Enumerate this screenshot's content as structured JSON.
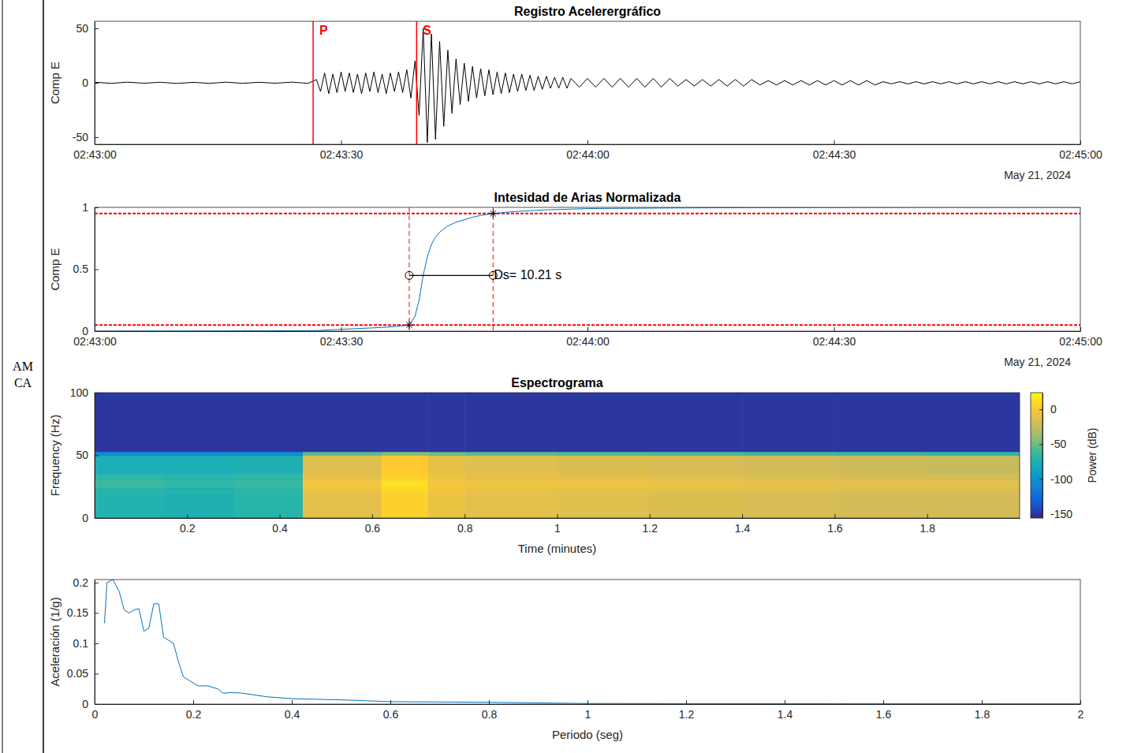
{
  "chart_data": [
    {
      "type": "line",
      "title": "Registro Acelerergráfico",
      "ylabel": "Comp E",
      "xlabel": "May 21, 2024",
      "color": "#000000",
      "xlim": [
        0,
        120
      ],
      "xticks": [
        {
          "value": 0,
          "label": "02:43:00"
        },
        {
          "value": 30,
          "label": "02:43:30"
        },
        {
          "value": 60,
          "label": "02:44:00"
        },
        {
          "value": 90,
          "label": "02:44:30"
        },
        {
          "value": 120,
          "label": "02:45:00"
        }
      ],
      "ylim": [
        -56.5,
        56.5
      ],
      "yticks": [
        -50,
        0,
        50
      ],
      "markers": [
        {
          "label": "P",
          "x": 26.6,
          "color": "#ff0000"
        },
        {
          "label": "S",
          "x": 39.2,
          "color": "#ff0000"
        }
      ],
      "x": [
        0,
        2,
        4,
        6,
        8,
        10,
        12,
        14,
        16,
        18,
        20,
        22,
        24,
        26,
        27,
        27.5,
        28,
        28.5,
        29,
        29.5,
        30,
        30.5,
        31,
        31.5,
        32,
        32.5,
        33,
        33.5,
        34,
        34.5,
        35,
        35.5,
        36,
        36.5,
        37,
        37.5,
        38,
        38.5,
        39,
        39.5,
        40,
        40.5,
        41,
        41.5,
        42,
        42.5,
        43,
        43.5,
        44,
        44.5,
        45,
        45.5,
        46,
        46.5,
        47,
        47.5,
        48,
        48.5,
        49,
        49.5,
        50,
        50.5,
        51,
        51.5,
        52,
        52.5,
        53,
        53.5,
        54,
        54.5,
        55,
        55.5,
        56,
        56.5,
        57,
        57.5,
        58,
        59,
        60,
        61,
        62,
        63,
        64,
        65,
        66,
        67,
        68,
        69,
        70,
        71,
        72,
        73,
        74,
        75,
        76,
        77,
        78,
        79,
        80,
        81,
        82,
        83,
        84,
        85,
        86,
        87,
        88,
        89,
        90,
        91,
        92,
        93,
        94,
        95,
        96,
        97,
        98,
        99,
        100,
        101,
        102,
        103,
        104,
        105,
        106,
        107,
        108,
        109,
        110,
        111,
        112,
        113,
        114,
        115,
        116,
        117,
        118,
        119,
        120
      ],
      "values": [
        0.5,
        -0.5,
        0.6,
        -0.4,
        0.5,
        -0.6,
        0.4,
        -0.5,
        0.6,
        -0.5,
        0.5,
        -0.4,
        0.6,
        -0.5,
        3,
        -8,
        9,
        -10,
        8,
        -9,
        10,
        -8,
        9,
        -9,
        8,
        -10,
        9,
        -8,
        10,
        -9,
        8,
        -10,
        9,
        -8,
        10,
        -9,
        12,
        -14,
        20,
        -30,
        50,
        -55,
        45,
        -52,
        38,
        -40,
        30,
        -28,
        22,
        -20,
        18,
        -17,
        15,
        -14,
        13,
        -12,
        12,
        -11,
        10,
        -10,
        9,
        -9,
        8,
        -8,
        8,
        -7,
        7,
        -7,
        6,
        -6,
        6,
        -5,
        5,
        -5,
        5,
        -5,
        4,
        -4,
        4,
        -4,
        4,
        -4,
        4,
        -4,
        4,
        -4,
        4,
        -4,
        4,
        -3,
        3,
        -3,
        3,
        -3,
        3,
        -3,
        3,
        -3,
        3,
        -2,
        2,
        -2,
        2,
        -2,
        2,
        -2,
        2,
        -2,
        2,
        -2,
        2,
        -2,
        2,
        -2,
        1,
        -1,
        1,
        -1,
        1,
        -1,
        1,
        -1,
        1,
        -1,
        1,
        -1,
        1,
        -1,
        1,
        -1,
        1,
        -1,
        1,
        -1,
        1,
        -1,
        1,
        -1,
        1
      ]
    },
    {
      "type": "line",
      "title": "Intesidad de Arias Normalizada",
      "ylabel": "Comp E",
      "xlabel": "May 21, 2024",
      "color": "#0072bd",
      "xlim": [
        0,
        120
      ],
      "xticks": [
        {
          "value": 0,
          "label": "02:43:00"
        },
        {
          "value": 30,
          "label": "02:43:30"
        },
        {
          "value": 60,
          "label": "02:44:00"
        },
        {
          "value": 90,
          "label": "02:44:30"
        },
        {
          "value": 120,
          "label": "02:45:00"
        }
      ],
      "ylim": [
        0,
        1
      ],
      "yticks": [
        0,
        0.5,
        1
      ],
      "thresholds": [
        0.05,
        0.95
      ],
      "interval": [
        38.3,
        48.51
      ],
      "interval_y": 0.45,
      "annotation": "Ds= 10.21 s",
      "x": [
        0,
        10,
        20,
        27,
        30,
        35,
        37,
        38.3,
        39,
        39.5,
        40,
        40.5,
        41,
        41.5,
        42,
        43,
        44,
        45,
        46,
        47,
        48.51,
        50,
        52,
        55,
        60,
        70,
        80,
        100,
        120
      ],
      "values": [
        0,
        0.001,
        0.002,
        0.005,
        0.015,
        0.03,
        0.04,
        0.05,
        0.12,
        0.25,
        0.45,
        0.6,
        0.7,
        0.76,
        0.8,
        0.85,
        0.88,
        0.9,
        0.92,
        0.935,
        0.95,
        0.96,
        0.97,
        0.98,
        0.99,
        0.995,
        0.998,
        1,
        1
      ]
    },
    {
      "type": "heatmap",
      "title": "Espectrograma",
      "xlabel": "Time (minutes)",
      "ylabel": "Frequency (Hz)",
      "xlim": [
        0,
        2
      ],
      "xticks": [
        0.2,
        0.4,
        0.6,
        0.8,
        1,
        1.2,
        1.4,
        1.6,
        1.8
      ],
      "ylim": [
        0,
        100
      ],
      "yticks": [
        0,
        50,
        100
      ],
      "x_edges": [
        0,
        0.15,
        0.3,
        0.45,
        0.62,
        0.72,
        0.8,
        1.0,
        1.2,
        1.4,
        1.6,
        1.8,
        2.0
      ],
      "y_edges": [
        0,
        20,
        25,
        30,
        35,
        50,
        53,
        100
      ],
      "cells": [
        [
          -72,
          -74,
          -70,
          -12,
          5,
          -8,
          -12,
          -14,
          -16,
          -18,
          -19,
          -20
        ],
        [
          -70,
          -72,
          -68,
          -8,
          8,
          -5,
          -9,
          -11,
          -13,
          -14,
          -15,
          -16
        ],
        [
          -62,
          -66,
          -64,
          -4,
          12,
          -2,
          -5,
          -7,
          -9,
          -10,
          -11,
          -12
        ],
        [
          -66,
          -70,
          -66,
          -10,
          6,
          -7,
          -10,
          -12,
          -14,
          -16,
          -17,
          -18
        ],
        [
          -76,
          -76,
          -74,
          -15,
          2,
          -10,
          -14,
          -16,
          -18,
          -20,
          -22,
          -24
        ],
        [
          -105,
          -105,
          -105,
          -55,
          -45,
          -50,
          -55,
          -58,
          -60,
          -62,
          -64,
          -66
        ],
        [
          -150,
          -150,
          -150,
          -150,
          -150,
          -150,
          -150,
          -150,
          -150,
          -150,
          -150,
          -150
        ]
      ],
      "colorbar_label": "Power (dB)",
      "colorbar_lim": [
        -156,
        24
      ],
      "colorbar_ticks": [
        -150,
        -100,
        -50,
        0
      ]
    },
    {
      "type": "line",
      "xlabel": "Periodo (seg)",
      "ylabel": "Aceleración (1/g)",
      "color": "#0072bd",
      "xlim": [
        0,
        2
      ],
      "xticks": [
        0,
        0.2,
        0.4,
        0.6,
        0.8,
        1,
        1.2,
        1.4,
        1.6,
        1.8,
        2
      ],
      "ylim": [
        0,
        0.205
      ],
      "yticks": [
        0,
        0.05,
        0.1,
        0.15,
        0.2
      ],
      "x": [
        0.02,
        0.025,
        0.037,
        0.05,
        0.06,
        0.07,
        0.08,
        0.09,
        0.1,
        0.11,
        0.12,
        0.13,
        0.14,
        0.15,
        0.16,
        0.17,
        0.18,
        0.2,
        0.21,
        0.23,
        0.25,
        0.26,
        0.28,
        0.3,
        0.35,
        0.4,
        0.5,
        0.6,
        0.8,
        1,
        1.5,
        2
      ],
      "values": [
        0.133,
        0.2,
        0.205,
        0.185,
        0.155,
        0.15,
        0.155,
        0.157,
        0.12,
        0.125,
        0.165,
        0.165,
        0.11,
        0.105,
        0.1,
        0.07,
        0.045,
        0.035,
        0.03,
        0.03,
        0.025,
        0.018,
        0.019,
        0.018,
        0.012,
        0.009,
        0.007,
        0.004,
        0.003,
        0.001,
        0.0005,
        0.0003
      ]
    }
  ],
  "station": [
    "AM",
    "CA"
  ]
}
